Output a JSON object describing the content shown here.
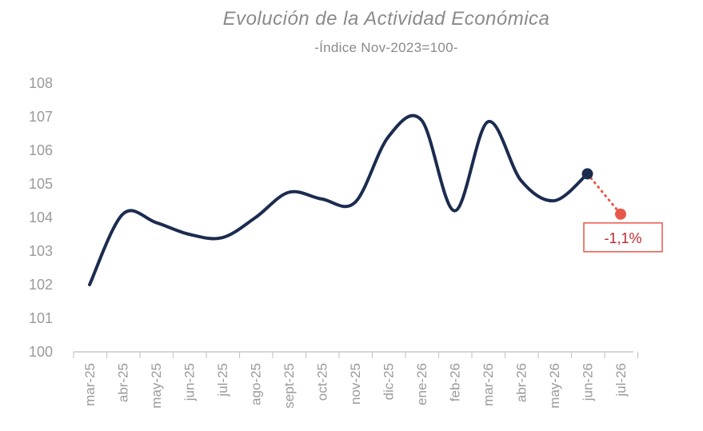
{
  "chart_data": {
    "type": "line",
    "title": "Evolución de la Actividad Económica",
    "subtitle": "-Índice Nov-2023=100-",
    "categories": [
      "mar-25",
      "abr-25",
      "may-25",
      "jun-25",
      "jul-25",
      "ago-25",
      "sept-25",
      "oct-25",
      "nov-25",
      "dic-25",
      "ene-26",
      "feb-26",
      "mar-26",
      "abr-26",
      "may-26",
      "jun-26",
      "jul-26"
    ],
    "series": [
      {
        "values": [
          102.0,
          104.1,
          103.85,
          103.5,
          103.4,
          104.0,
          104.75,
          104.55,
          104.45,
          106.4,
          106.9,
          104.2,
          106.85,
          105.1,
          104.5,
          105.3,
          null
        ],
        "color": "#1b2c4f"
      }
    ],
    "projection": {
      "from_category": "jun-26",
      "to_category": "jul-26",
      "from_value": 105.3,
      "to_value": 104.1,
      "color": "#e8574b",
      "style": "dotted"
    },
    "annotation": {
      "text": "-1,1%",
      "color": "#c0282c",
      "category": "jul-26"
    },
    "ylim": [
      100,
      108
    ],
    "yticks": [
      100,
      101,
      102,
      103,
      104,
      105,
      106,
      107,
      108
    ],
    "grid": false,
    "legend": "none"
  }
}
